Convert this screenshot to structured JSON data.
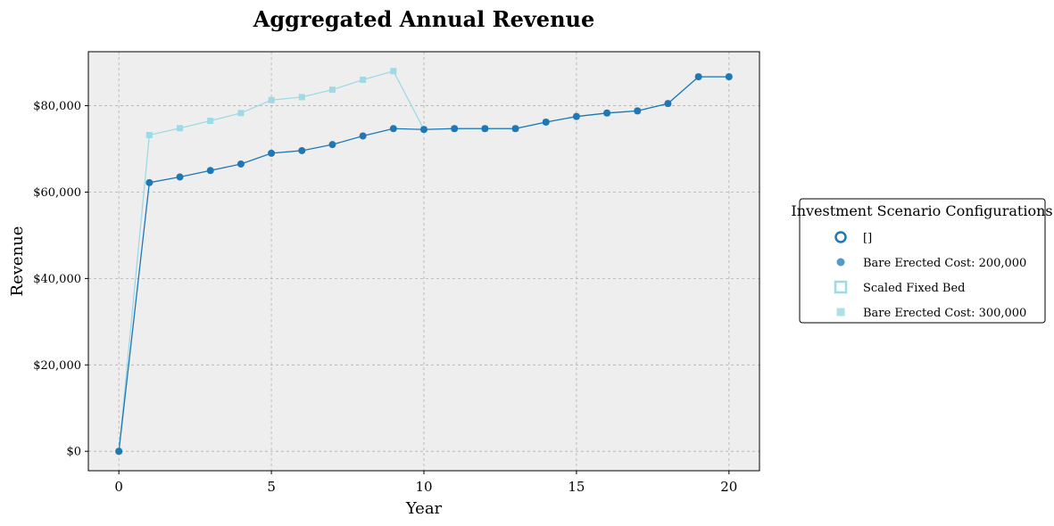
{
  "chart_data": {
    "type": "line",
    "title": "Aggregated Annual Revenue",
    "xlabel": "Year",
    "ylabel": "Revenue",
    "xlim": [
      -1,
      21
    ],
    "ylim": [
      -4500,
      92500
    ],
    "x_ticks": [
      0,
      5,
      10,
      15,
      20
    ],
    "y_ticks": [
      0,
      20000,
      40000,
      60000,
      80000
    ],
    "y_tick_labels": [
      "$0",
      "$20,000",
      "$40,000",
      "$60,000",
      "$80,000"
    ],
    "grid": true,
    "legend": {
      "title": "Investment Scenario Configurations",
      "placement": "center-right-outside",
      "entries": [
        "[]",
        "Bare Erected Cost: 200,000",
        "Scaled Fixed Bed",
        "Bare Erected Cost: 300,000"
      ]
    },
    "x": [
      0,
      1,
      2,
      3,
      4,
      5,
      6,
      7,
      8,
      9,
      10,
      11,
      12,
      13,
      14,
      15,
      16,
      17,
      18,
      19,
      20
    ],
    "series": [
      {
        "name": "Bare Erected Cost: 200,000",
        "color": "#1f77b4",
        "marker": "circle",
        "values": [
          0,
          62200,
          63500,
          65000,
          66500,
          69000,
          69600,
          71000,
          73000,
          74700,
          74500,
          74700,
          74700,
          74700,
          76200,
          77500,
          78300,
          78800,
          80500,
          86700,
          86700
        ]
      },
      {
        "name": "Bare Erected Cost: 300,000",
        "color": "#9edae5",
        "marker": "square",
        "values": [
          0,
          73200,
          74800,
          76500,
          78300,
          81300,
          82000,
          83700,
          86000,
          88000,
          74500,
          74700,
          74700,
          74700,
          76200,
          77500,
          78300,
          78800,
          80500,
          86700,
          86700
        ]
      }
    ]
  },
  "colors": {
    "plot_background": "#eeeeee",
    "dark_blue": "#1f77b4",
    "light_blue": "#9edae5"
  }
}
